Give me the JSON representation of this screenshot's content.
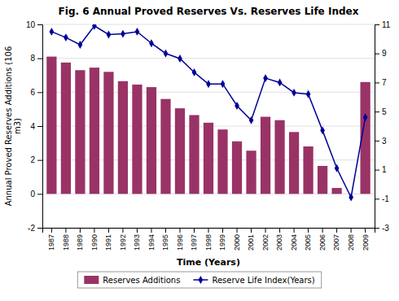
{
  "chart_data": {
    "type": "bar",
    "title": "Fig. 6 Annual Proved Reserves Vs. Reserves Life Index",
    "x_label": "Time (Years)",
    "y_label": "Annual Proved Reserves Additions (106\nm3)",
    "categories": [
      "1987",
      "1988",
      "1989",
      "1990",
      "1991",
      "1992",
      "1993",
      "1994",
      "1995",
      "1996",
      "1997",
      "1998",
      "1999",
      "2000",
      "2001",
      "2002",
      "2003",
      "2004",
      "2005",
      "2006",
      "2007",
      "2008",
      "2009"
    ],
    "series": [
      {
        "name": "Reserves Additions",
        "type": "bar",
        "color": "#993366",
        "values": [
          8.1,
          7.75,
          7.3,
          7.45,
          7.2,
          6.65,
          6.45,
          6.3,
          5.6,
          5.05,
          4.65,
          4.2,
          3.8,
          3.1,
          2.55,
          4.55,
          4.35,
          3.65,
          2.8,
          1.65,
          0.35,
          0.0,
          6.6
        ]
      },
      {
        "name": "Reserve Life Index(Years)",
        "type": "line",
        "color": "#000099",
        "marker": "diamond",
        "axis": "y2",
        "values": [
          10.5,
          10.1,
          9.6,
          10.9,
          10.3,
          10.35,
          10.5,
          9.7,
          9.0,
          8.65,
          7.7,
          6.9,
          6.9,
          5.4,
          4.4,
          7.3,
          7.0,
          6.3,
          6.2,
          3.7,
          1.1,
          -0.9,
          4.6
        ]
      }
    ],
    "ylim": [
      -2,
      10
    ],
    "yticks": [
      -2,
      0,
      2,
      4,
      6,
      8,
      10
    ],
    "y2lim": [
      -3,
      11
    ],
    "y2ticks": [
      -3,
      -1,
      1,
      3,
      5,
      7,
      9,
      11
    ],
    "grid": true,
    "legend": "bottom"
  }
}
